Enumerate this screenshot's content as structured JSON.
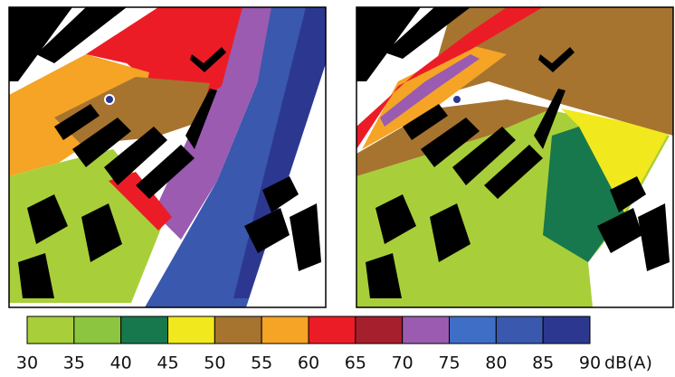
{
  "legend": {
    "ticks": [
      30,
      35,
      40,
      45,
      50,
      55,
      60,
      65,
      70,
      75,
      80,
      85,
      90
    ],
    "unit": "dB(A)",
    "colors": [
      "#a8cf3a",
      "#8cc640",
      "#17784d",
      "#f2e81e",
      "#a6742f",
      "#f5a425",
      "#ec1c26",
      "#a51f2c",
      "#9a5bb0",
      "#3e6ec6",
      "#3a58ad",
      "#2c3890"
    ]
  }
}
